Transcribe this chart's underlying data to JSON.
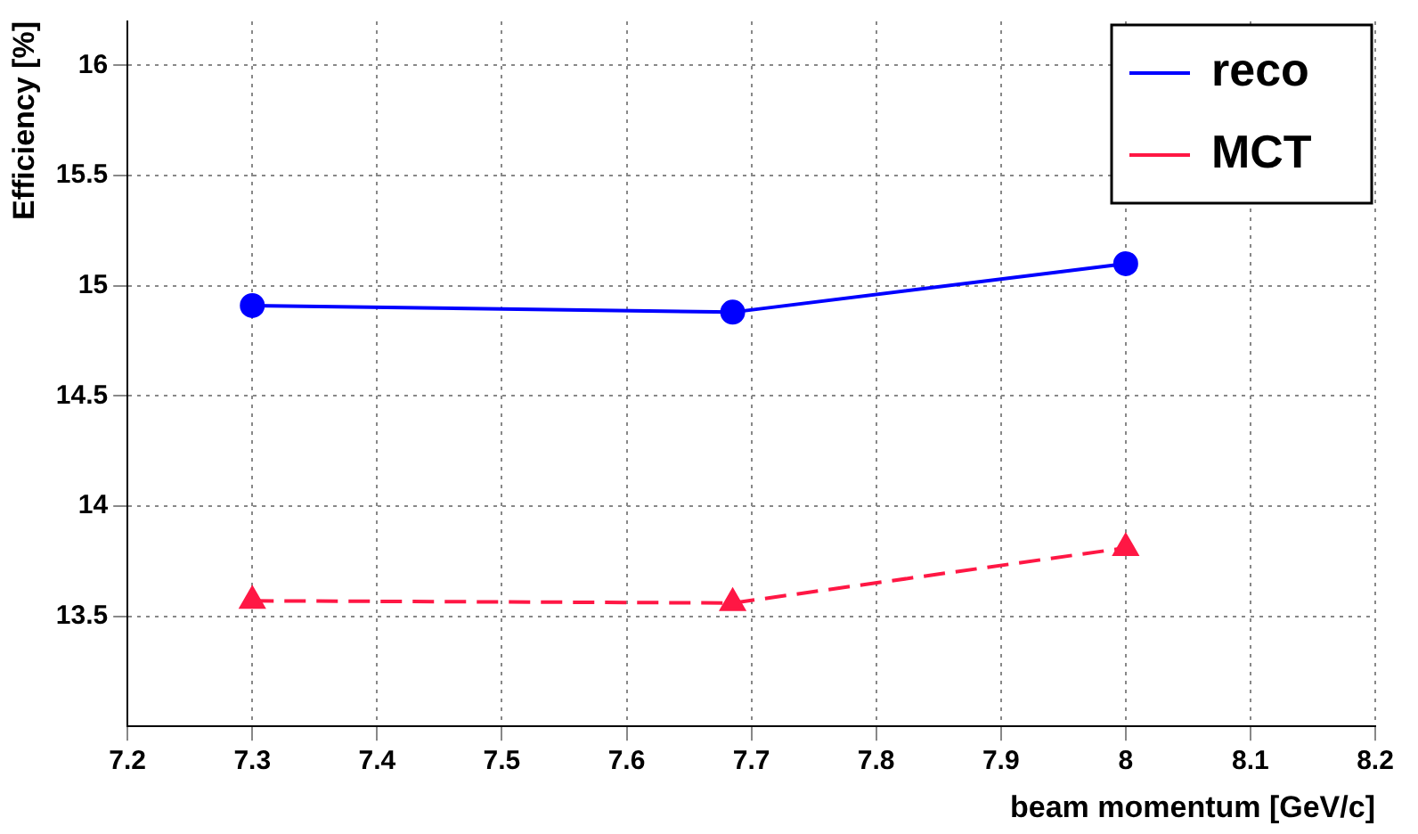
{
  "chart_data": {
    "type": "line",
    "xlabel": "beam momentum [GeV/c]",
    "ylabel": "Efficiency [%]",
    "x": [
      7.3,
      7.685,
      8
    ],
    "series": [
      {
        "name": "reco",
        "color": "#0000ff",
        "values": [
          14.91,
          14.88,
          15.1
        ],
        "marker": "circle",
        "line_style": "solid"
      },
      {
        "name": "MCT",
        "color": "#ff1744",
        "values": [
          13.57,
          13.56,
          13.81
        ],
        "marker": "triangle",
        "line_style": "dashed"
      }
    ],
    "xlim": [
      7.2,
      8.2
    ],
    "xticks": [
      7.2,
      7.3,
      7.4,
      7.5,
      7.6,
      7.7,
      7.8,
      7.9,
      8,
      8.1,
      8.2
    ],
    "ylim": [
      13,
      16.2
    ],
    "yticks": [
      13.5,
      14,
      14.5,
      15,
      15.5,
      16
    ],
    "grid": true,
    "legend": "top right"
  }
}
